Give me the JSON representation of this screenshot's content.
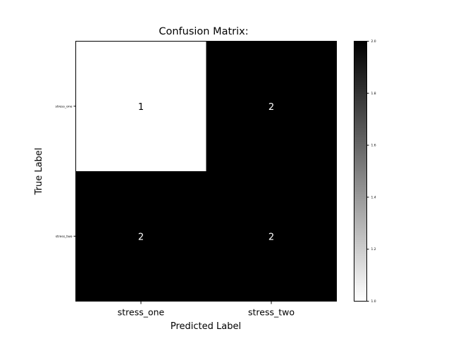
{
  "chart_data": {
    "type": "heatmap",
    "title": "Confusion Matrix:",
    "xlabel": "Predicted Label",
    "ylabel": "True Label",
    "x_categories": [
      "stress_one",
      "stress_two"
    ],
    "y_categories": [
      "stress_one",
      "stress_two"
    ],
    "values": [
      [
        1,
        2
      ],
      [
        2,
        2
      ]
    ],
    "colormap": "gray_r",
    "vmin": 1,
    "vmax": 2,
    "colorbar_ticks": [
      "1.0",
      "1.2",
      "1.4",
      "1.6",
      "1.8",
      "2.0"
    ]
  }
}
